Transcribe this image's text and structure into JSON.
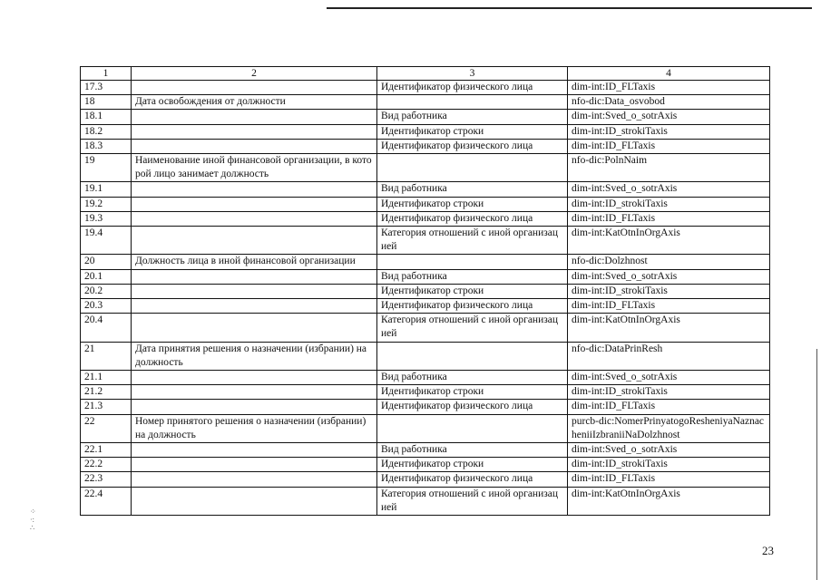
{
  "table": {
    "header": [
      "1",
      "2",
      "3",
      "4"
    ],
    "rows": [
      [
        "17.3",
        "",
        "Идентификатор физического лица",
        "dim-int:ID_FLTaxis"
      ],
      [
        "18",
        "Дата освобождения от должности",
        "",
        "nfo-dic:Data_osvobod"
      ],
      [
        "18.1",
        "",
        "Вид работника",
        "dim-int:Sved_o_sotrAxis"
      ],
      [
        "18.2",
        "",
        "Идентификатор строки",
        "dim-int:ID_strokiTaxis"
      ],
      [
        "18.3",
        "",
        "Идентификатор физического лица",
        "dim-int:ID_FLTaxis"
      ],
      [
        "19",
        "Наименование иной финансовой организации, в которой лицо занимает должность",
        "",
        "nfo-dic:PolnNaim"
      ],
      [
        "19.1",
        "",
        "Вид работника",
        "dim-int:Sved_o_sotrAxis"
      ],
      [
        "19.2",
        "",
        "Идентификатор строки",
        "dim-int:ID_strokiTaxis"
      ],
      [
        "19.3",
        "",
        "Идентификатор физического лица",
        "dim-int:ID_FLTaxis"
      ],
      [
        "19.4",
        "",
        "Категория отношений с иной организацией",
        "dim-int:KatOtnInOrgAxis"
      ],
      [
        "20",
        "Должность лица в иной финансовой организации",
        "",
        "nfo-dic:Dolzhnost"
      ],
      [
        "20.1",
        "",
        "Вид работника",
        "dim-int:Sved_o_sotrAxis"
      ],
      [
        "20.2",
        "",
        "Идентификатор строки",
        "dim-int:ID_strokiTaxis"
      ],
      [
        "20.3",
        "",
        "Идентификатор физического лица",
        "dim-int:ID_FLTaxis"
      ],
      [
        "20.4",
        "",
        "Категория отношений с иной организацией",
        "dim-int:KatOtnInOrgAxis"
      ],
      [
        "21",
        "Дата принятия решения о назначении (избрании) на должность",
        "",
        "nfo-dic:DataPrinResh"
      ],
      [
        "21.1",
        "",
        "Вид работника",
        "dim-int:Sved_o_sotrAxis"
      ],
      [
        "21.2",
        "",
        "Идентификатор строки",
        "dim-int:ID_strokiTaxis"
      ],
      [
        "21.3",
        "",
        "Идентификатор физического лица",
        "dim-int:ID_FLTaxis"
      ],
      [
        "22",
        "Номер принятого решения о назначении (избрании) на должность",
        "",
        "purcb-dic:NomerPrinyatogoResheniyaNaznacheniiIzbraniiNaDolzhnost"
      ],
      [
        "22.1",
        "",
        "Вид работника",
        "dim-int:Sved_o_sotrAxis"
      ],
      [
        "22.2",
        "",
        "Идентификатор строки",
        "dim-int:ID_strokiTaxis"
      ],
      [
        "22.3",
        "",
        "Идентификатор физического лица",
        "dim-int:ID_FLTaxis"
      ],
      [
        "22.4",
        "",
        "Категория отношений с иной организацией",
        "dim-int:KatOtnInOrgAxis"
      ]
    ]
  },
  "page_number": "23"
}
